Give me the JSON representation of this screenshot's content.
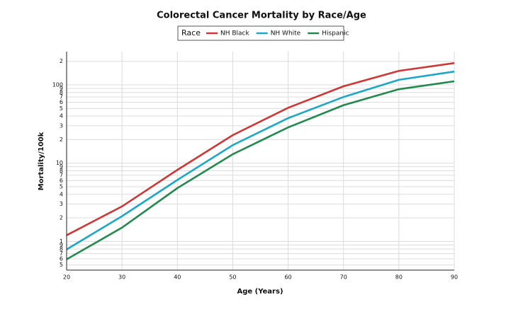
{
  "chart_data": {
    "type": "line",
    "title": "Colorectal Cancer Mortality by Race/Age",
    "x_label": "Age (Years)",
    "y_label": "Mortality/100k",
    "legend_title": "Race",
    "x": [
      20,
      30,
      40,
      50,
      60,
      70,
      80,
      90
    ],
    "series": [
      {
        "name": "NH Black",
        "color": "#cf3636",
        "values": [
          1.2,
          2.8,
          8.2,
          22.8,
          51,
          96,
          151,
          190
        ]
      },
      {
        "name": "NH White",
        "color": "#1ba8c8",
        "values": [
          0.79,
          2.1,
          6.1,
          17,
          37.6,
          70,
          116,
          148
        ]
      },
      {
        "name": "Hispanic",
        "color": "#228a4e",
        "values": [
          0.59,
          1.5,
          4.8,
          13,
          28.6,
          55,
          88,
          111
        ]
      }
    ],
    "xlim": [
      20,
      90
    ],
    "xticks": [
      20,
      30,
      40,
      50,
      60,
      70,
      80,
      90
    ],
    "ylim": [
      0.43,
      266
    ],
    "log_y": true,
    "grid": true,
    "legend_position": "top",
    "yticks": [
      {
        "value": 0.5,
        "label": "5"
      },
      {
        "value": 0.6,
        "label": "6"
      },
      {
        "value": 0.7,
        "label": "7"
      },
      {
        "value": 0.8,
        "label": "8"
      },
      {
        "value": 0.9,
        "label": "9"
      },
      1,
      {
        "value": 2,
        "label": "2"
      },
      {
        "value": 3,
        "label": "3"
      },
      {
        "value": 4,
        "label": "4"
      },
      {
        "value": 5,
        "label": "5"
      },
      {
        "value": 6,
        "label": "6"
      },
      {
        "value": 7,
        "label": "7"
      },
      {
        "value": 8,
        "label": "8"
      },
      {
        "value": 9,
        "label": "9"
      },
      10,
      {
        "value": 20,
        "label": "2"
      },
      {
        "value": 30,
        "label": "3"
      },
      {
        "value": 40,
        "label": "4"
      },
      {
        "value": 50,
        "label": "5"
      },
      {
        "value": 60,
        "label": "6"
      },
      {
        "value": 70,
        "label": "7"
      },
      {
        "value": 80,
        "label": "8"
      },
      {
        "value": 90,
        "label": "9"
      },
      100,
      {
        "value": 200,
        "label": "2"
      }
    ]
  }
}
